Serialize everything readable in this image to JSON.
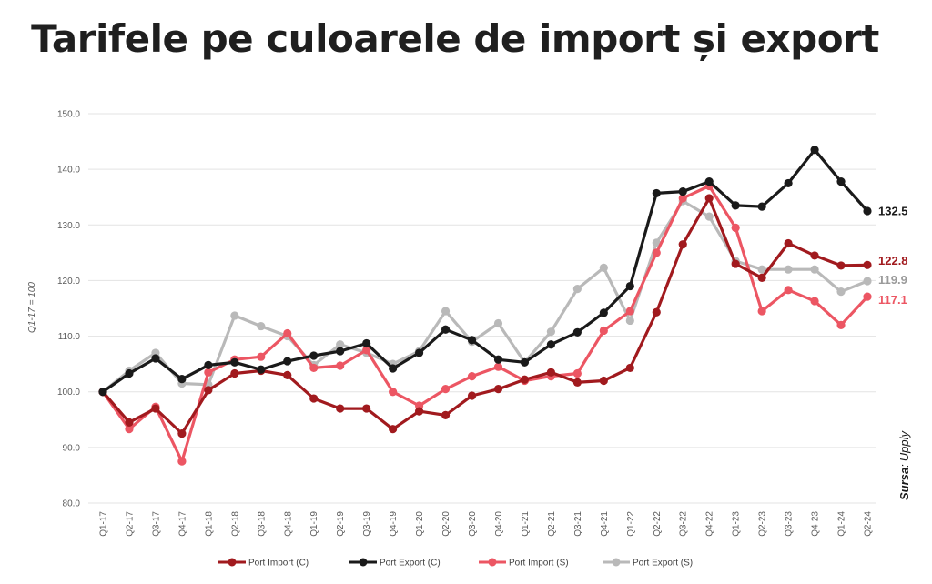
{
  "title": "Tarifele pe culoarele de import și export",
  "source": {
    "label": "Sursa",
    "sep": ":",
    "value": "Upply"
  },
  "chart_data": {
    "type": "line",
    "ylabel": "Q1-17 = 100",
    "ylim": [
      80,
      150
    ],
    "yticks": [
      "80.0",
      "90.0",
      "100.0",
      "110.0",
      "120.0",
      "130.0",
      "140.0",
      "150.0"
    ],
    "ytick_values": [
      80,
      90,
      100,
      110,
      120,
      130,
      140,
      150
    ],
    "grid": true,
    "legend_position": "bottom",
    "categories": [
      "Q1-17",
      "Q2-17",
      "Q3-17",
      "Q4-17",
      "Q1-18",
      "Q2-18",
      "Q3-18",
      "Q4-18",
      "Q1-19",
      "Q2-19",
      "Q3-19",
      "Q4-19",
      "Q1-20",
      "Q2-20",
      "Q3-20",
      "Q4-20",
      "Q1-21",
      "Q2-21",
      "Q3-21",
      "Q4-21",
      "Q1-22",
      "Q2-22",
      "Q3-22",
      "Q4-22",
      "Q1-23",
      "Q2-23",
      "Q3-23",
      "Q4-23",
      "Q1-24",
      "Q2-24"
    ],
    "series": [
      {
        "name": "Port Import (C)",
        "color": "#a11a1e",
        "end_label": "122.8",
        "values": [
          100.0,
          94.5,
          97.0,
          92.5,
          100.3,
          103.3,
          103.8,
          103.0,
          98.8,
          97.0,
          97.0,
          93.3,
          96.5,
          95.8,
          99.3,
          100.5,
          102.2,
          103.5,
          101.7,
          102.0,
          104.3,
          114.3,
          126.5,
          134.8,
          123.0,
          120.5,
          126.7,
          124.5,
          122.7,
          122.8
        ]
      },
      {
        "name": "Port Export (C)",
        "color": "#1a1a1a",
        "end_label": "132.5",
        "values": [
          100.0,
          103.3,
          106.0,
          102.3,
          104.8,
          105.3,
          104.0,
          105.5,
          106.5,
          107.3,
          108.7,
          104.2,
          107.0,
          111.2,
          109.3,
          105.8,
          105.3,
          108.5,
          110.7,
          114.2,
          119.0,
          135.7,
          136.0,
          137.8,
          133.5,
          133.3,
          137.5,
          143.5,
          137.8,
          132.5
        ]
      },
      {
        "name": "Port Import (S)",
        "color": "#ec5663",
        "end_label": "117.1",
        "values": [
          100.0,
          93.3,
          97.3,
          87.5,
          103.5,
          105.8,
          106.3,
          110.5,
          104.3,
          104.7,
          107.5,
          100.0,
          97.5,
          100.5,
          102.8,
          104.5,
          102.0,
          102.8,
          103.3,
          111.0,
          114.5,
          125.0,
          134.8,
          137.0,
          129.5,
          114.5,
          118.3,
          116.3,
          112.0,
          117.1
        ]
      },
      {
        "name": "Port Export (S)",
        "color": "#b9b9b9",
        "end_label": "119.9",
        "values": [
          100.0,
          103.8,
          107.0,
          101.5,
          101.3,
          113.7,
          111.8,
          110.0,
          104.8,
          108.5,
          107.0,
          105.0,
          107.3,
          114.5,
          109.0,
          112.3,
          105.3,
          110.8,
          118.5,
          122.3,
          112.8,
          126.8,
          134.3,
          131.5,
          123.5,
          122.0,
          122.0,
          122.0,
          118.0,
          119.9
        ]
      }
    ]
  }
}
